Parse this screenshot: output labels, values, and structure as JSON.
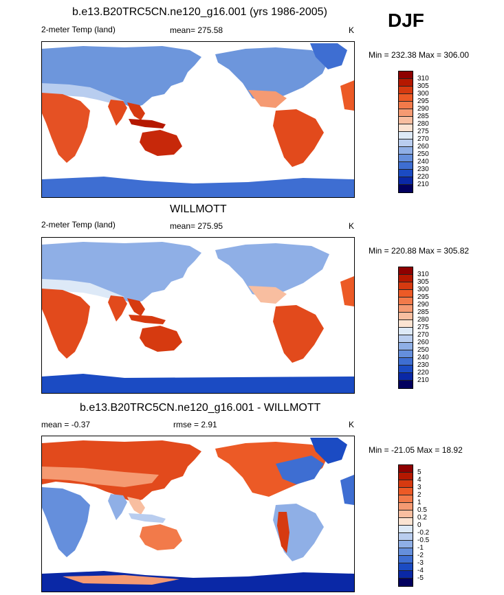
{
  "season_label": "DJF",
  "panels": [
    {
      "title": "b.e13.B20TRC5CN.ne120_g16.001 (yrs 1986-2005)",
      "variable": "2-meter Temp (land)",
      "stat_text": "mean= 275.58",
      "units": "K",
      "minmax": "Min = 232.38 Max = 306.00"
    },
    {
      "title": "WILLMOTT",
      "variable": "2-meter Temp (land)",
      "stat_text": "mean= 275.95",
      "units": "K",
      "minmax": "Min = 220.88 Max = 305.82"
    },
    {
      "title": "b.e13.B20TRC5CN.ne120_g16.001 - WILLMOTT",
      "variable": "",
      "stat_text": "mean =  -0.37",
      "rmse_text": "rmse =    2.91",
      "units": "K",
      "minmax": "Min = -21.05 Max =  18.92"
    }
  ],
  "colorbar_abs": {
    "labels": [
      "310",
      "305",
      "300",
      "295",
      "290",
      "285",
      "280",
      "275",
      "270",
      "260",
      "250",
      "240",
      "230",
      "220",
      "210"
    ],
    "colors": [
      "#8e0000",
      "#b51800",
      "#d63a10",
      "#ec5a26",
      "#f27a4a",
      "#f59a72",
      "#f8bea0",
      "#fbe3d2",
      "#dde9f7",
      "#b9cdef",
      "#8fafe6",
      "#658fdc",
      "#3e6ed2",
      "#1b4bc3",
      "#0a28a6",
      "#02005e"
    ]
  },
  "colorbar_diff": {
    "labels": [
      "5",
      "4",
      "3",
      "2",
      "1",
      "0.5",
      "0.2",
      "0",
      "-0.2",
      "-0.5",
      "-1",
      "-2",
      "-3",
      "-4",
      "-5"
    ],
    "colors": [
      "#8e0000",
      "#b51800",
      "#d63a10",
      "#ec5a26",
      "#f27a4a",
      "#f59a72",
      "#f8bea0",
      "#fbe3d2",
      "#dde9f7",
      "#b9cdef",
      "#8fafe6",
      "#658fdc",
      "#3e6ed2",
      "#1b4bc3",
      "#0a28a6",
      "#02005e"
    ]
  },
  "chart_data": [
    {
      "type": "heatmap",
      "title": "b.e13.B20TRC5CN.ne120_g16.001 (yrs 1986-2005)",
      "variable": "2-meter Temp (land)",
      "season": "DJF",
      "units": "K",
      "mean": 275.58,
      "min": 232.38,
      "max": 306.0,
      "contour_levels": [
        210,
        220,
        230,
        240,
        250,
        260,
        270,
        275,
        280,
        285,
        290,
        295,
        300,
        305,
        310
      ],
      "projection": "cylindrical equidistant, Pacific-centered"
    },
    {
      "type": "heatmap",
      "title": "WILLMOTT",
      "variable": "2-meter Temp (land)",
      "season": "DJF",
      "units": "K",
      "mean": 275.95,
      "min": 220.88,
      "max": 305.82,
      "contour_levels": [
        210,
        220,
        230,
        240,
        250,
        260,
        270,
        275,
        280,
        285,
        290,
        295,
        300,
        305,
        310
      ],
      "projection": "cylindrical equidistant, Pacific-centered"
    },
    {
      "type": "heatmap",
      "title": "b.e13.B20TRC5CN.ne120_g16.001 - WILLMOTT",
      "season": "DJF",
      "units": "K",
      "mean": -0.37,
      "rmse": 2.91,
      "min": -21.05,
      "max": 18.92,
      "contour_levels": [
        -5,
        -4,
        -3,
        -2,
        -1,
        -0.5,
        -0.2,
        0,
        0.2,
        0.5,
        1,
        2,
        3,
        4,
        5
      ],
      "projection": "cylindrical equidistant, Pacific-centered"
    }
  ]
}
